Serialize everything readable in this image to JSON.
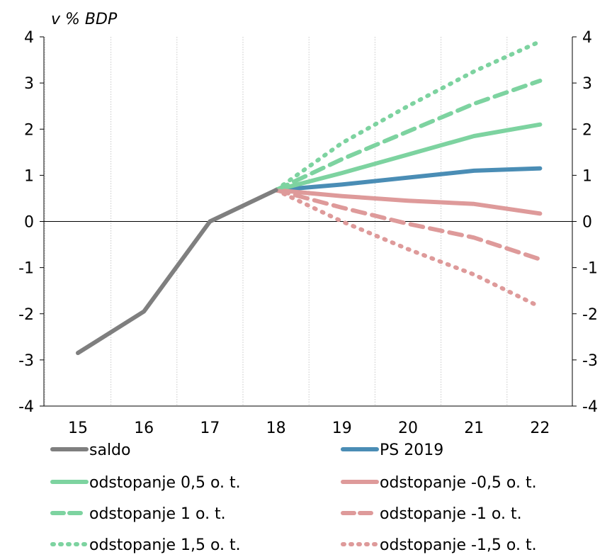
{
  "chart_data": {
    "type": "line",
    "unit_label": "v % BDP",
    "x": [
      "15",
      "16",
      "17",
      "18",
      "19",
      "20",
      "21",
      "22"
    ],
    "ylim": [
      -4,
      4
    ],
    "yticks": [
      "4",
      "3",
      "2",
      "1",
      "0",
      "-1",
      "-2",
      "-3",
      "-4"
    ],
    "yticks_right": [
      "4",
      "3",
      "2",
      "1",
      "0",
      "-1",
      "-2",
      "-3",
      "-4"
    ],
    "grid": "vertical dotted",
    "legend_position": "bottom",
    "series": [
      {
        "name": "saldo",
        "color": "#7f7f7f",
        "style": "solid",
        "x": [
          15,
          16,
          17,
          18
        ],
        "values": [
          -2.85,
          -1.95,
          0.0,
          0.68
        ]
      },
      {
        "name": "PS 2019",
        "color": "#4a8db5",
        "style": "solid",
        "x": [
          18,
          19,
          20,
          21,
          22
        ],
        "values": [
          0.68,
          0.8,
          0.95,
          1.1,
          1.15
        ]
      },
      {
        "name": "odstopanje 0,5 o. t.",
        "color": "#7dd3a0",
        "style": "solid",
        "x": [
          18,
          19,
          20,
          21,
          22
        ],
        "values": [
          0.68,
          1.05,
          1.45,
          1.85,
          2.1
        ]
      },
      {
        "name": "odstopanje -0,5 o. t.",
        "color": "#de9a9a",
        "style": "solid",
        "x": [
          18,
          19,
          20,
          21,
          22
        ],
        "values": [
          0.68,
          0.55,
          0.45,
          0.38,
          0.17
        ]
      },
      {
        "name": "odstopanje 1 o. t.",
        "color": "#7dd3a0",
        "style": "dashed",
        "x": [
          18,
          19,
          20,
          21,
          22
        ],
        "values": [
          0.68,
          1.35,
          1.95,
          2.55,
          3.05
        ]
      },
      {
        "name": "odstopanje -1 o. t.",
        "color": "#de9a9a",
        "style": "dashed",
        "x": [
          18,
          19,
          20,
          21,
          22
        ],
        "values": [
          0.68,
          0.3,
          -0.05,
          -0.35,
          -0.82
        ]
      },
      {
        "name": "odstopanje 1,5 o. t.",
        "color": "#7dd3a0",
        "style": "dotted",
        "x": [
          18,
          19,
          20,
          21,
          22
        ],
        "values": [
          0.68,
          1.7,
          2.5,
          3.25,
          3.9
        ]
      },
      {
        "name": "odstopanje -1,5 o. t.",
        "color": "#de9a9a",
        "style": "dotted",
        "x": [
          18,
          19,
          20,
          21,
          22
        ],
        "values": [
          0.68,
          0.0,
          -0.6,
          -1.15,
          -1.85
        ]
      }
    ]
  }
}
